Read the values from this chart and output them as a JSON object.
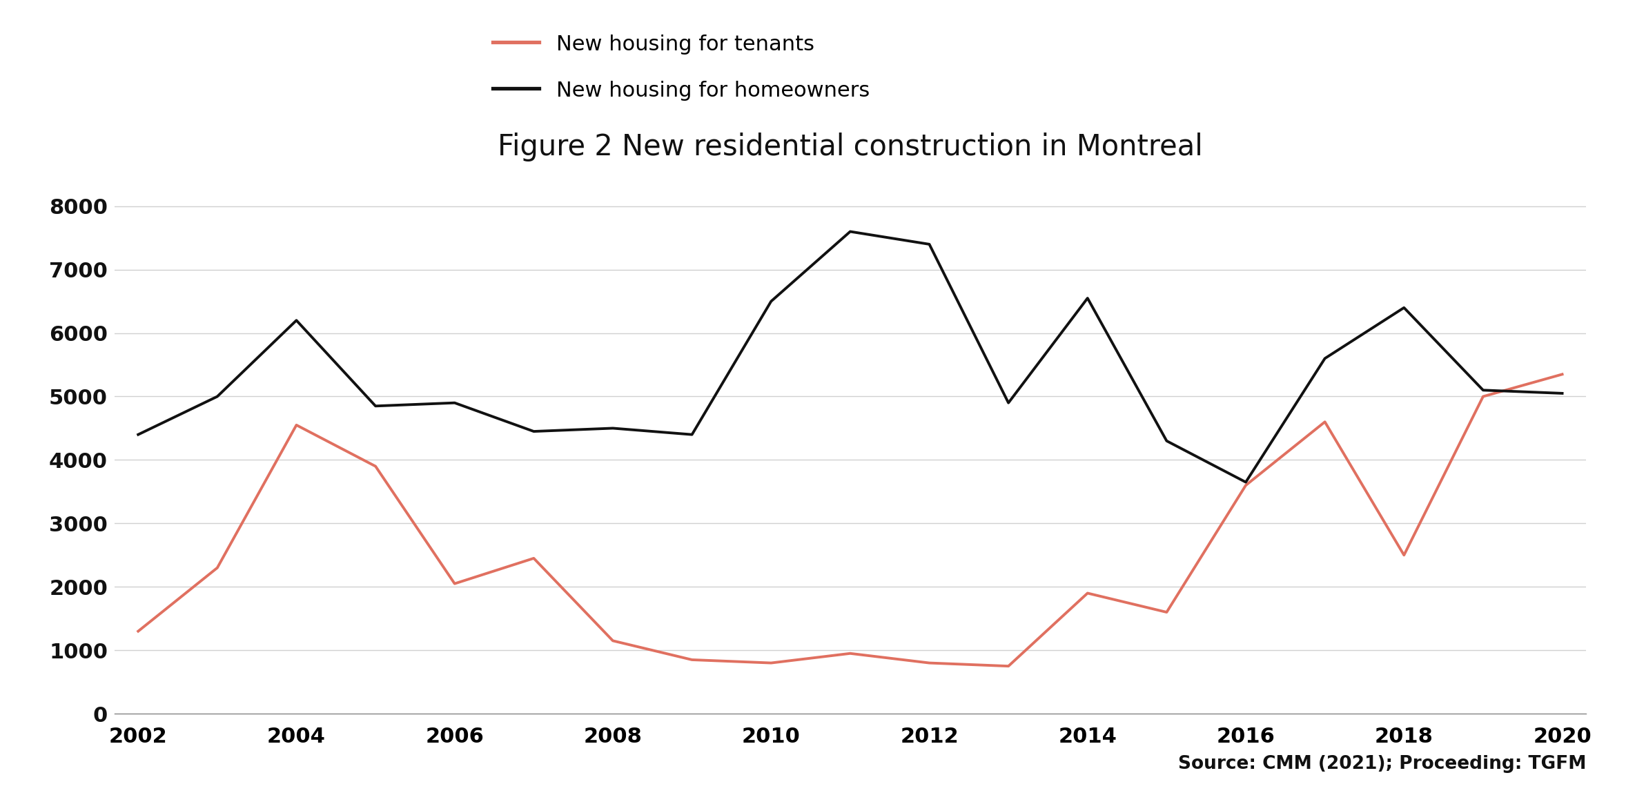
{
  "title": "Figure 2 New residential construction in Montreal",
  "source_text": "Source: CMM (2021); Proceeding: TGFM",
  "years": [
    2002,
    2003,
    2004,
    2005,
    2006,
    2007,
    2008,
    2009,
    2010,
    2011,
    2012,
    2013,
    2014,
    2015,
    2016,
    2017,
    2018,
    2019,
    2020
  ],
  "tenants": [
    1300,
    2300,
    4550,
    3900,
    2050,
    2450,
    1150,
    850,
    800,
    950,
    800,
    750,
    1900,
    1600,
    3600,
    4600,
    2500,
    5000,
    5350
  ],
  "homeowners": [
    4400,
    5000,
    6200,
    4850,
    4900,
    4450,
    4500,
    4400,
    6500,
    7600,
    7400,
    4900,
    6550,
    4300,
    3650,
    5600,
    6400,
    5100,
    5050
  ],
  "tenant_color": "#E07060",
  "homeowner_color": "#111111",
  "tenant_label": "New housing for tenants",
  "homeowner_label": "New housing for homeowners",
  "ylim": [
    0,
    8500
  ],
  "yticks": [
    0,
    1000,
    2000,
    3000,
    4000,
    5000,
    6000,
    7000,
    8000
  ],
  "background_color": "#ffffff",
  "grid_color": "#d0d0d0",
  "line_width": 2.8,
  "title_fontsize": 30,
  "legend_fontsize": 22,
  "tick_fontsize": 22,
  "source_fontsize": 19
}
